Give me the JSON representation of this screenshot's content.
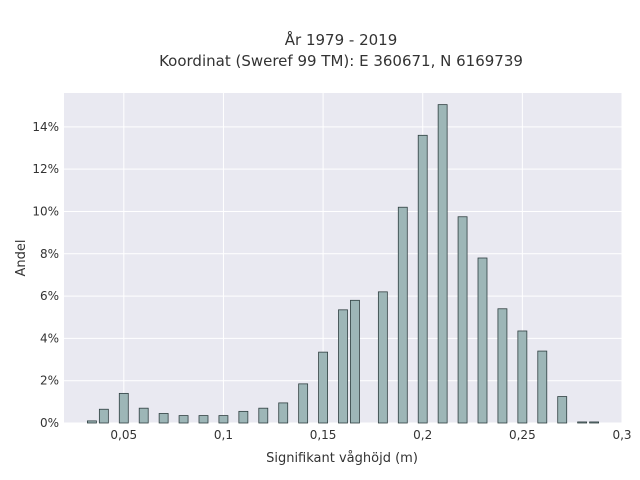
{
  "chart_data": {
    "type": "bar",
    "title": [
      "År 1979 - 2019",
      "Koordinat (Sweref 99 TM): E 360671, N 6169739"
    ],
    "xlabel": "Signifikant våghöjd (m)",
    "ylabel": "Andel",
    "xlim": [
      0.02,
      0.3
    ],
    "ylim": [
      0,
      0.156
    ],
    "xticks": [
      0.05,
      0.1,
      0.15,
      0.2,
      0.25,
      0.3
    ],
    "xtick_labels": [
      "0,05",
      "0,1",
      "0,15",
      "0,2",
      "0,25",
      "0,3"
    ],
    "yticks": [
      0,
      0.02,
      0.04,
      0.06,
      0.08,
      0.1,
      0.12,
      0.14
    ],
    "ytick_labels": [
      "0%",
      "2%",
      "4%",
      "6%",
      "8%",
      "10%",
      "12%",
      "14%"
    ],
    "grid": true,
    "bar_color": "#9db6b7",
    "bar_edge_color": "#2f3f40",
    "plot_background": "#e9e9f1",
    "x": [
      0.034,
      0.04,
      0.05,
      0.06,
      0.07,
      0.08,
      0.09,
      0.1,
      0.11,
      0.12,
      0.13,
      0.14,
      0.15,
      0.16,
      0.166,
      0.18,
      0.19,
      0.2,
      0.21,
      0.22,
      0.23,
      0.24,
      0.25,
      0.26,
      0.27,
      0.28,
      0.286
    ],
    "values": [
      0.001,
      0.0065,
      0.014,
      0.007,
      0.0045,
      0.0035,
      0.0035,
      0.0035,
      0.0055,
      0.007,
      0.0095,
      0.0185,
      0.0335,
      0.0535,
      0.058,
      0.062,
      0.102,
      0.136,
      0.1505,
      0.0975,
      0.078,
      0.054,
      0.0435,
      0.034,
      0.0125,
      0.0005,
      0.0005
    ]
  }
}
